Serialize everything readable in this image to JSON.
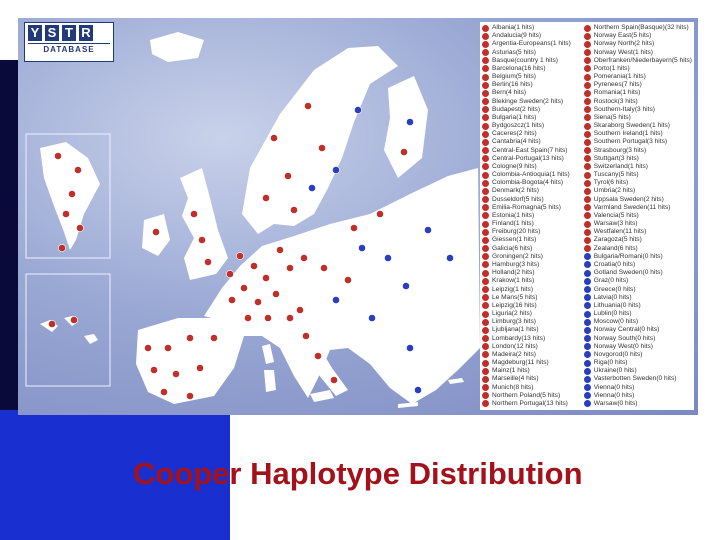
{
  "logo": {
    "letters": [
      "Y",
      "S",
      "T",
      "R"
    ],
    "subtitle": "DATABASE"
  },
  "title": "Cooper Haplotype Distribution",
  "colors": {
    "title": "#a3121b",
    "blue_bar": "#1a2fd0",
    "marker_red": "#c0302a",
    "marker_blue": "#2a3ec0",
    "land": "#ffffff",
    "sea": "#9aa8d4"
  },
  "legend": {
    "left": [
      "Albania(1 hits)",
      "Andalucia(9 hits)",
      "Argentia-Europeans(1 hits)",
      "Asturias(5 hits)",
      "Basque(country 1 hits)",
      "Barcelona(16 hits)",
      "Belgium(5 hits)",
      "Berlin(16 hits)",
      "Bern(4 hits)",
      "Blekinge Sweden(2 hits)",
      "Budapest(2 hits)",
      "Bulgaria(1 hits)",
      "Bydgoszcz(1 hits)",
      "Caceres(2 hits)",
      "Cantabria(4 hits)",
      "Central-East Spain(7 hits)",
      "Central-Portugal(13 hits)",
      "Cologne(9 hits)",
      "Colombia-Antioquia(1 hits)",
      "Colombia-Bogota(4 hits)",
      "Denmark(2 hits)",
      "Dusseldorf(5 hits)",
      "Emilia-Romagna(5 hits)",
      "Estonia(1 hits)",
      "Finland(1 hits)",
      "Freiburg(20 hits)",
      "Giessen(1 hits)",
      "Galicia(6 hits)",
      "Groningen(2 hits)",
      "Hamburg(3 hits)",
      "Holland(2 hits)",
      "Krakow(1 hits)",
      "Leipzig(1 hits)",
      "Le Mans(5 hits)",
      "Leipzig(16 hits)",
      "Liguria(2 hits)",
      "Limburg(3 hits)",
      "Ljubljana(1 hits)",
      "Lombardy(13 hits)",
      "London(12 hits)",
      "Madeira(2 hits)",
      "Magdeburg(11 hits)",
      "Mainz(1 hits)",
      "Marseille(4 hits)",
      "Munich(8 hits)",
      "Northern Poland(5 hits)",
      "Northern Portugal(13 hits)"
    ],
    "right": [
      "Northern Spain(Basque)(32 hits)",
      "Norway East(5 hits)",
      "Norway North(2 hits)",
      "Norway West(1 hits)",
      "Oberfranken/Niederbayern(5 hits)",
      "Porto(1 hits)",
      "Pomerania(1 hits)",
      "Pyrenees(7 hits)",
      "Romania(1 hits)",
      "Rostock(3 hits)",
      "Southern-Italy(3 hits)",
      "Siena(5 hits)",
      "Skaraborg Sweden(1 hits)",
      "Southern Ireland(1 hits)",
      "Southern Portugal(3 hits)",
      "Strasbourg(3 hits)",
      "Stuttgart(3 hits)",
      "Switzerland(1 hits)",
      "Tuscany(5 hits)",
      "Tyrol(6 hits)",
      "Umbria(2 hits)",
      "Uppsala Sweden(2 hits)",
      "Varmland Sweden(11 hits)",
      "Valencia(5 hits)",
      "Warsaw(3 hits)",
      "Westfalen(11 hits)",
      "Zaragoza(5 hits)",
      "Zealand(6 hits)",
      "Bulgaria/Romani(0 hits)",
      "Croatia(0 hits)",
      "Gotland Sweden(0 hits)",
      "Graz(0 hits)",
      "Greece(0 hits)",
      "Latvia(0 hits)",
      "Lithuania(0 hits)",
      "Lublin(0 hits)",
      "Moscow(0 hits)",
      "Norway Central(0 hits)",
      "Norway South(0 hits)",
      "Norway West(0 hits)",
      "Novgorod(0 hits)",
      "Riga(0 hits)",
      "Ukraine(0 hits)",
      "Vasterbotten Sweden(0 hits)",
      "Vienna(0 hits)",
      "Vienna(0 hits)",
      "Warsaw(0 hits)"
    ],
    "right_blue_from": 28
  }
}
